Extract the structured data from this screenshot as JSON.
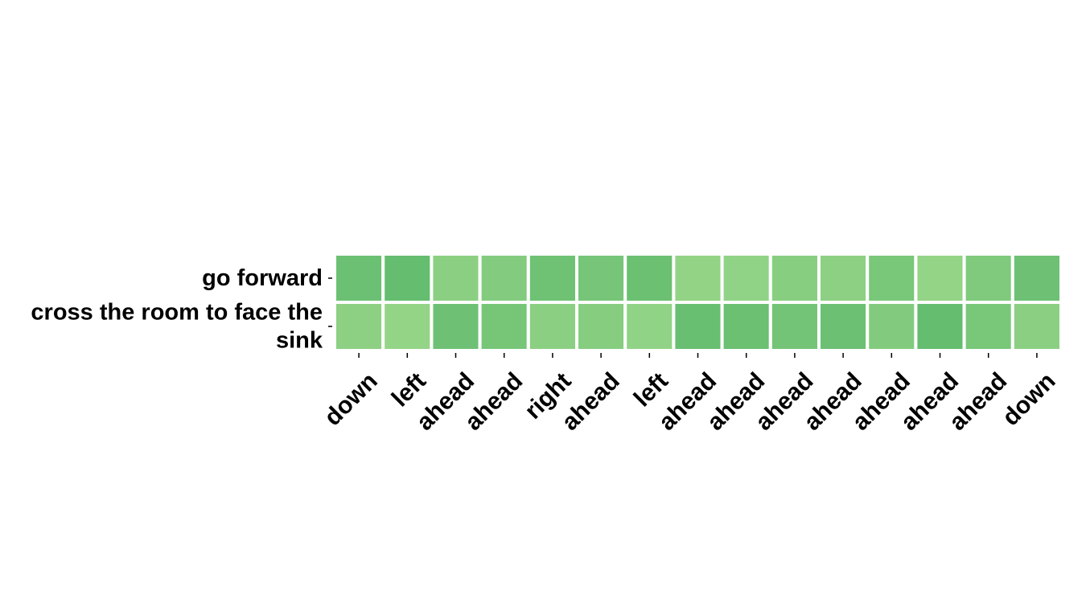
{
  "chart_data": {
    "type": "heatmap",
    "title": "",
    "xlabel": "",
    "ylabel": "",
    "x_tick_labels": [
      "down",
      "left",
      "ahead",
      "ahead",
      "right",
      "ahead",
      "left",
      "ahead",
      "ahead",
      "ahead",
      "ahead",
      "ahead",
      "ahead",
      "ahead",
      "down"
    ],
    "y_tick_labels": [
      [
        "go forward"
      ],
      [
        "cross the room to face the",
        "sink"
      ]
    ],
    "values": [
      [
        0.62,
        0.72,
        0.22,
        0.32,
        0.58,
        0.5,
        0.64,
        0.12,
        0.14,
        0.26,
        0.2,
        0.46,
        0.1,
        0.38,
        0.6
      ],
      [
        0.2,
        0.1,
        0.6,
        0.48,
        0.22,
        0.28,
        0.14,
        0.66,
        0.64,
        0.52,
        0.62,
        0.34,
        0.72,
        0.46,
        0.22
      ]
    ],
    "colormap": {
      "low": "#9cd88b",
      "high": "#4fb264"
    },
    "cell_border_color": "#ffffff"
  }
}
